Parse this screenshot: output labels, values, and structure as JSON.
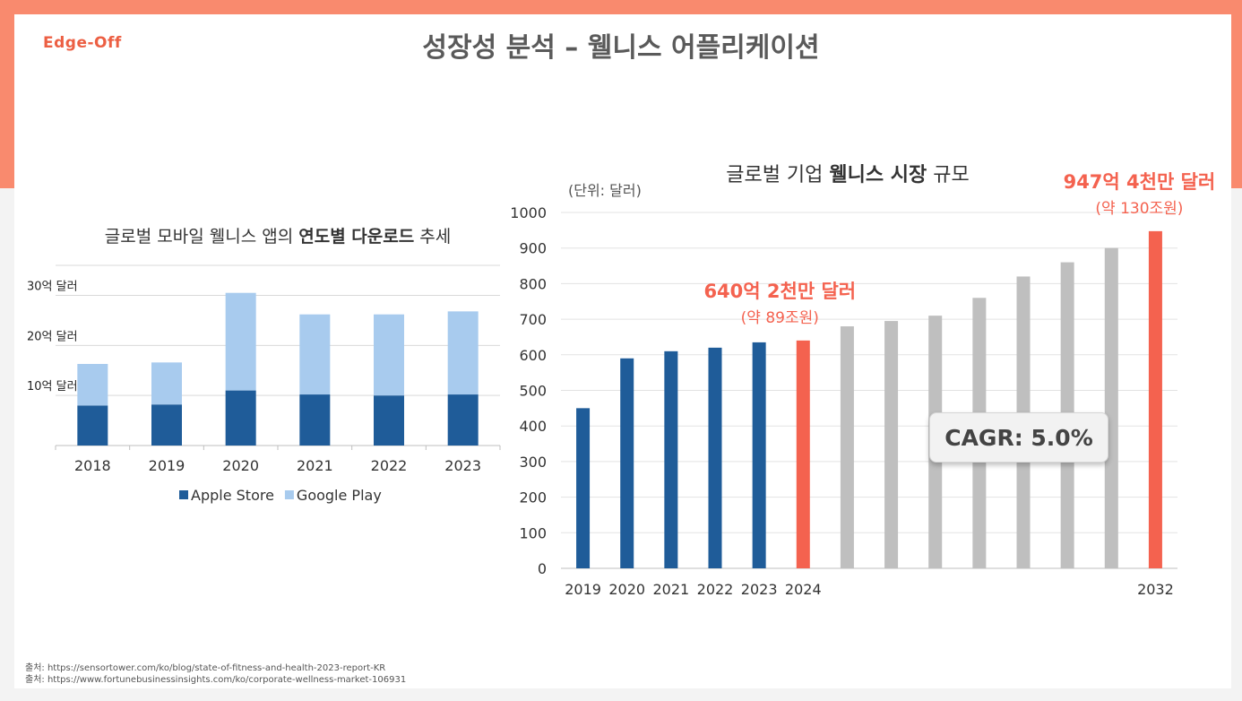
{
  "logo": "Edge-Off",
  "page_title": "성장성 분석 – 웰니스 어플리케이션",
  "chart_data": [
    {
      "type": "bar",
      "stacked": true,
      "title_parts": [
        "글로벌 모바일 웰니스 앱의 ",
        "연도별 다운로드",
        " 추세"
      ],
      "categories": [
        "2018",
        "2019",
        "2020",
        "2021",
        "2022",
        "2023"
      ],
      "series": [
        {
          "name": "Apple Store",
          "color": "#1f5c99",
          "values": [
            8,
            8.2,
            11,
            10.2,
            10,
            10.2
          ]
        },
        {
          "name": "Google Play",
          "color": "#a8cbee",
          "values": [
            8.3,
            8.4,
            19.5,
            16,
            16.2,
            16.6
          ]
        }
      ],
      "yticks": [
        {
          "value": 10,
          "label": "10억 달러"
        },
        {
          "value": 20,
          "label": "20억 달러"
        },
        {
          "value": 30,
          "label": "30억 달러"
        }
      ],
      "ylim": [
        0,
        36
      ],
      "legend": "bottom",
      "grid": true
    },
    {
      "type": "bar",
      "title_parts": [
        "글로벌 기업 ",
        "웰니스 시장",
        " 규모"
      ],
      "unit_label": "(단위: 달러)",
      "x": [
        "2019",
        "2020",
        "2021",
        "2022",
        "2023",
        "2024",
        "2025",
        "2026",
        "2027",
        "2028",
        "2029",
        "2030",
        "2031",
        "2032"
      ],
      "x_labels": [
        "2019",
        "2020",
        "2021",
        "2022",
        "2023",
        "2024",
        "",
        "",
        "",
        "",
        "",
        "",
        "",
        "2032"
      ],
      "values": [
        450,
        590,
        610,
        620,
        635,
        640.2,
        680,
        695,
        710,
        760,
        820,
        860,
        900,
        947.4
      ],
      "bar_kind": [
        "actual",
        "actual",
        "actual",
        "actual",
        "actual",
        "highlight",
        "forecast",
        "forecast",
        "forecast",
        "forecast",
        "forecast",
        "forecast",
        "forecast",
        "highlight"
      ],
      "colors": {
        "actual": "#1f5c99",
        "highlight": "#f4624f",
        "forecast": "#bfbfbf"
      },
      "yticks": [
        0,
        100,
        200,
        300,
        400,
        500,
        600,
        700,
        800,
        900,
        1000
      ],
      "ylim": [
        0,
        1000
      ],
      "grid": true,
      "annotations": [
        {
          "at": "2024",
          "main": "640억 2천만 달러",
          "sub": "(약 89조원)"
        },
        {
          "at": "2032",
          "main": "947억 4천만 달러",
          "sub": "(약 130조원)"
        }
      ],
      "callout": "CAGR: 5.0%"
    }
  ],
  "sources": [
    "출처: https://sensortower.com/ko/blog/state-of-fitness-and-health-2023-report-KR",
    "출처: https://www.fortunebusinessinsights.com/ko/corporate-wellness-market-106931"
  ]
}
